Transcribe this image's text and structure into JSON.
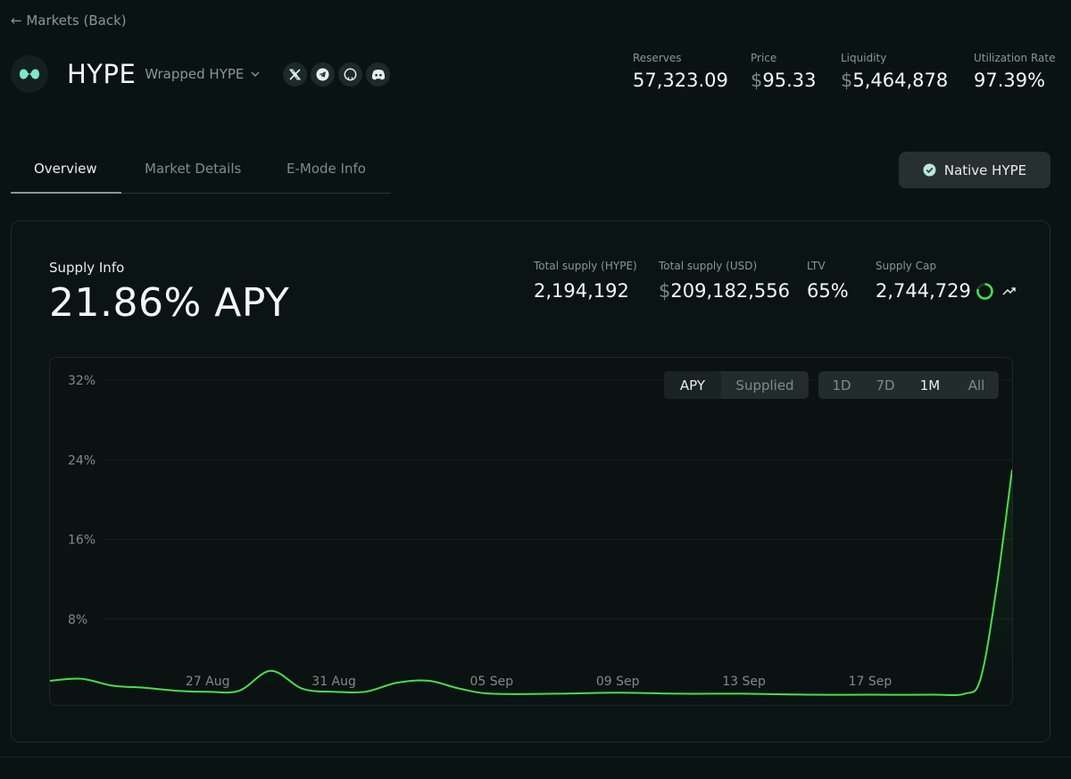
{
  "nav": {
    "back_label": "← Markets (Back)"
  },
  "asset": {
    "symbol": "HYPE",
    "name": "Wrapped HYPE",
    "logo_icon": "hyperliquid-logo",
    "accent": "#7ee8c7",
    "socials": [
      {
        "icon": "x-icon"
      },
      {
        "icon": "telegram-icon"
      },
      {
        "icon": "github-icon"
      },
      {
        "icon": "discord-icon"
      }
    ]
  },
  "header_stats": {
    "reserves": {
      "label": "Reserves",
      "value": "57,323.09"
    },
    "price": {
      "label": "Price",
      "prefix": "$",
      "value": "95.33"
    },
    "liquidity": {
      "label": "Liquidity",
      "prefix": "$",
      "value": "5,464,878"
    },
    "utilization": {
      "label": "Utilization Rate",
      "value": "97.39%"
    }
  },
  "tabs": [
    {
      "label": "Overview",
      "active": true
    },
    {
      "label": "Market Details",
      "active": false
    },
    {
      "label": "E-Mode Info",
      "active": false
    }
  ],
  "native_button": {
    "label": "Native HYPE",
    "icon": "check-circle-icon"
  },
  "supply": {
    "title": "Supply Info",
    "apy": "21.86% APY",
    "stats": {
      "total_hype": {
        "label": "Total supply (HYPE)",
        "value": "2,194,192"
      },
      "total_usd": {
        "label": "Total supply (USD)",
        "prefix": "$",
        "value": "209,182,556"
      },
      "ltv": {
        "label": "LTV",
        "value": "65%"
      },
      "supply_cap": {
        "label": "Supply Cap",
        "value": "2,744,729"
      }
    }
  },
  "chart_controls": {
    "metric": [
      {
        "label": "APY",
        "active": true
      },
      {
        "label": "Supplied",
        "active": false
      }
    ],
    "range": [
      {
        "label": "1D",
        "active": false
      },
      {
        "label": "7D",
        "active": false
      },
      {
        "label": "1M",
        "active": true
      },
      {
        "label": "All",
        "active": false
      }
    ]
  },
  "chart_data": {
    "type": "line",
    "title": "",
    "xlabel": "",
    "ylabel": "",
    "ylim": [
      0,
      32
    ],
    "yticks": [
      8,
      16,
      24,
      32
    ],
    "ytick_labels": [
      "8%",
      "16%",
      "24%",
      "32%"
    ],
    "xticks": [
      "2025-08-27",
      "2025-08-31",
      "2025-09-05",
      "2025-09-09",
      "2025-09-13",
      "2025-09-17"
    ],
    "xtick_labels": [
      "27 Aug",
      "31 Aug",
      "05 Sep",
      "09 Sep",
      "13 Sep",
      "17 Sep"
    ],
    "grid": true,
    "line_color": "#4ade4a",
    "series": [
      {
        "values": [
          {
            "x": "2025-08-22",
            "y": 1.8
          },
          {
            "x": "2025-08-23",
            "y": 2.0
          },
          {
            "x": "2025-08-24",
            "y": 1.3
          },
          {
            "x": "2025-08-25",
            "y": 1.1
          },
          {
            "x": "2025-08-26",
            "y": 0.8
          },
          {
            "x": "2025-08-27",
            "y": 0.7
          },
          {
            "x": "2025-08-28",
            "y": 0.8
          },
          {
            "x": "2025-08-29",
            "y": 2.8
          },
          {
            "x": "2025-08-30",
            "y": 1.0
          },
          {
            "x": "2025-08-31",
            "y": 0.7
          },
          {
            "x": "2025-09-01",
            "y": 0.7
          },
          {
            "x": "2025-09-02",
            "y": 1.6
          },
          {
            "x": "2025-09-03",
            "y": 1.8
          },
          {
            "x": "2025-09-04",
            "y": 1.0
          },
          {
            "x": "2025-09-05",
            "y": 0.5
          },
          {
            "x": "2025-09-07",
            "y": 0.5
          },
          {
            "x": "2025-09-09",
            "y": 0.6
          },
          {
            "x": "2025-09-11",
            "y": 0.5
          },
          {
            "x": "2025-09-13",
            "y": 0.5
          },
          {
            "x": "2025-09-15",
            "y": 0.4
          },
          {
            "x": "2025-09-17",
            "y": 0.4
          },
          {
            "x": "2025-09-19",
            "y": 0.4
          },
          {
            "x": "2025-09-20",
            "y": 0.5
          },
          {
            "x": "2025-09-20T12:00",
            "y": 2.0
          },
          {
            "x": "2025-09-21",
            "y": 11.0
          },
          {
            "x": "2025-09-21T12:00",
            "y": 23.0
          }
        ]
      }
    ]
  }
}
